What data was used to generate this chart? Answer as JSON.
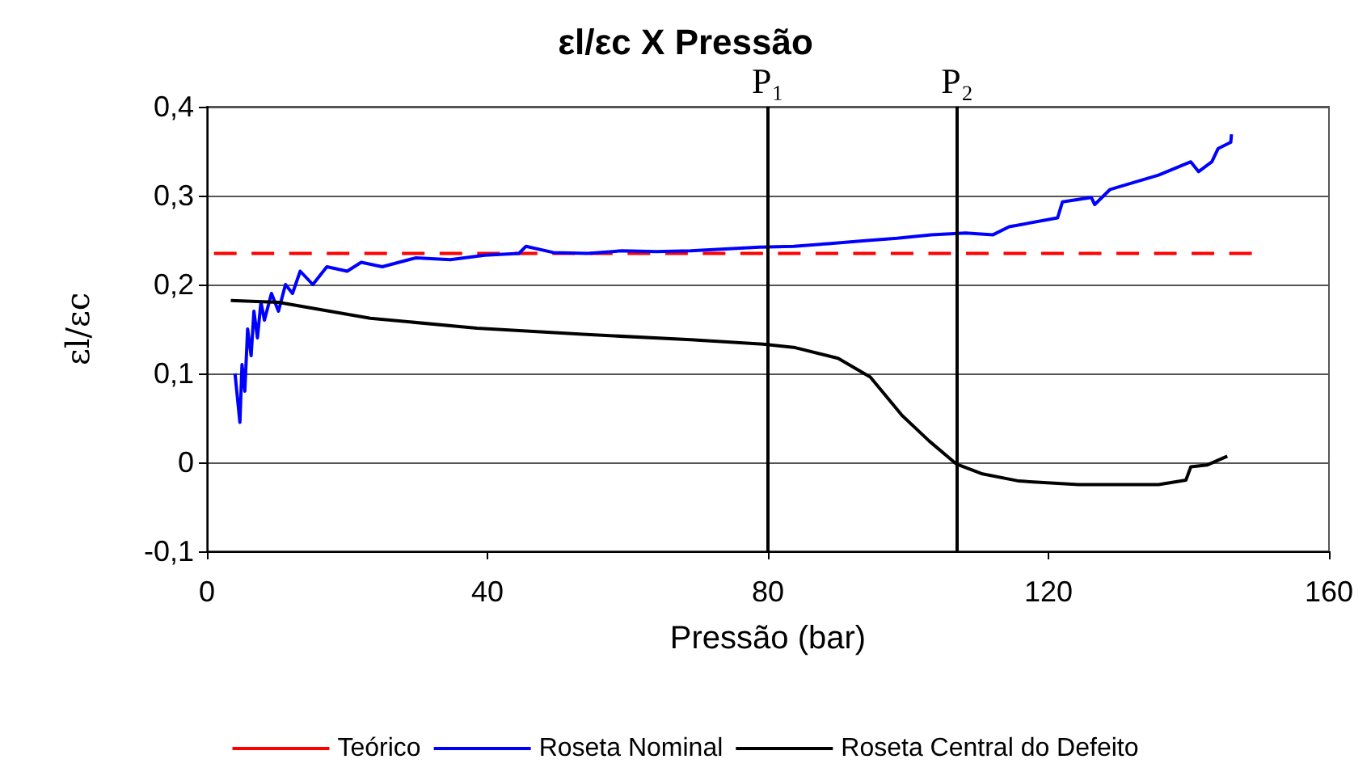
{
  "chart_data": {
    "type": "line",
    "title": "εl/εc X Pressão",
    "xlabel": "Pressão (bar)",
    "ylabel": "εl/εc",
    "xlim": [
      0,
      160
    ],
    "xticks": [
      0,
      40,
      80,
      120,
      160
    ],
    "ylim": [
      -0.1,
      0.4
    ],
    "yticks": [
      {
        "value": -0.1,
        "label": "-0,1"
      },
      {
        "value": 0,
        "label": "0"
      },
      {
        "value": 0.1,
        "label": "0,1"
      },
      {
        "value": 0.2,
        "label": "0,2"
      },
      {
        "value": 0.3,
        "label": "0,3"
      },
      {
        "value": 0.4,
        "label": "0,4"
      }
    ],
    "grid": "y",
    "legend": "bottom",
    "marker": "none",
    "series": [
      {
        "name": "Teórico",
        "color": "#ff0000",
        "line_style": "dashed",
        "x": [
          1,
          149
        ],
        "values": [
          0.235,
          0.235
        ]
      },
      {
        "name": "Roseta Nominal",
        "color": "#0000ff",
        "x": [
          4.0,
          4.7,
          5.0,
          5.4,
          5.8,
          6.3,
          6.7,
          7.2,
          7.7,
          8.2,
          9.2,
          10.2,
          11.2,
          12.2,
          13.3,
          15.1,
          17.1,
          20.0,
          22.0,
          25.0,
          29.8,
          34.7,
          39.6,
          44.5,
          45.5,
          49.4,
          54.3,
          59.2,
          64.1,
          69.0,
          73.9,
          78.8,
          83.7,
          88.6,
          93.5,
          98.4,
          103.3,
          108.2,
          112.1,
          114.4,
          121.3,
          122.0,
          126.1,
          126.6,
          128.8,
          135.7,
          140.3,
          141.4,
          143.3,
          144.2,
          146.0,
          146.1
        ],
        "values": [
          0.1,
          0.045,
          0.11,
          0.08,
          0.15,
          0.12,
          0.17,
          0.14,
          0.18,
          0.16,
          0.19,
          0.17,
          0.2,
          0.19,
          0.215,
          0.2,
          0.22,
          0.215,
          0.225,
          0.22,
          0.23,
          0.228,
          0.233,
          0.235,
          0.243,
          0.236,
          0.235,
          0.238,
          0.237,
          0.238,
          0.24,
          0.242,
          0.243,
          0.246,
          0.249,
          0.252,
          0.256,
          0.258,
          0.256,
          0.265,
          0.275,
          0.293,
          0.298,
          0.29,
          0.307,
          0.323,
          0.338,
          0.327,
          0.338,
          0.353,
          0.36,
          0.369
        ]
      },
      {
        "name": "Roseta Central do Defeito",
        "color": "#000000",
        "x": [
          3.4,
          10.2,
          23.3,
          38.5,
          53.6,
          69.0,
          79.3,
          83.9,
          90.0,
          94.6,
          99.1,
          103.0,
          106.9,
          110.6,
          115.8,
          124.3,
          135.7,
          139.6,
          140.3,
          142.6,
          145.5
        ],
        "values": [
          0.182,
          0.18,
          0.162,
          0.151,
          0.144,
          0.138,
          0.133,
          0.129,
          0.117,
          0.096,
          0.053,
          0.024,
          -0.002,
          -0.013,
          -0.021,
          -0.025,
          -0.025,
          -0.02,
          -0.005,
          -0.003,
          0.007
        ]
      }
    ],
    "ref_lines": [
      {
        "axis": "x",
        "value": 80,
        "label": "P₁",
        "color": "#000000"
      },
      {
        "axis": "x",
        "value": 107,
        "label": "P₂",
        "color": "#000000"
      }
    ]
  }
}
